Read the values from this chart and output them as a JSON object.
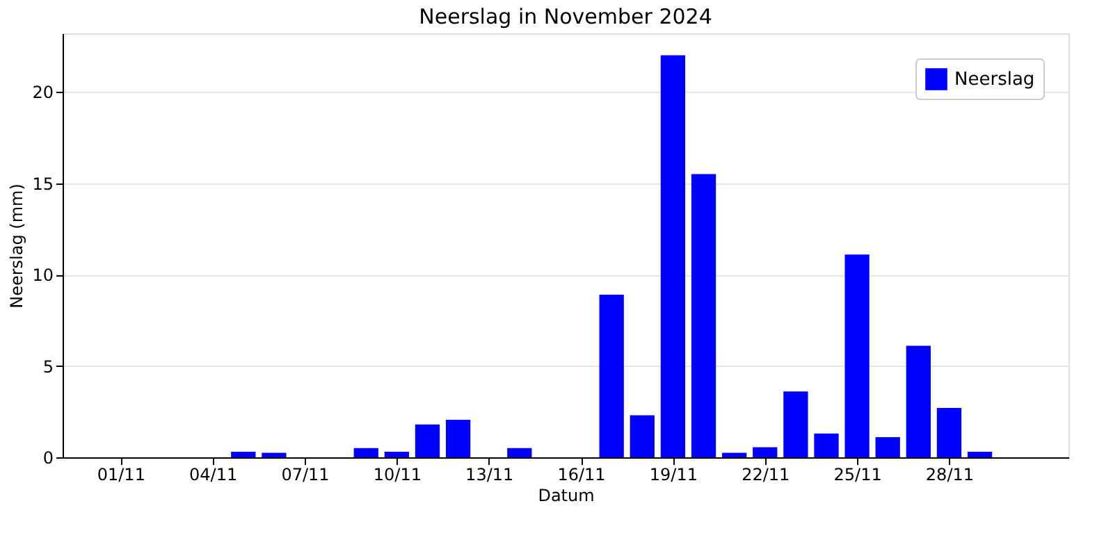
{
  "chart_data": {
    "type": "bar",
    "title": "Neerslag in November 2024",
    "xlabel": "Datum",
    "ylabel": "Neerslag (mm)",
    "x": [
      "2024-11-01",
      "2024-11-02",
      "2024-11-03",
      "2024-11-04",
      "2024-11-05",
      "2024-11-06",
      "2024-11-07",
      "2024-11-08",
      "2024-11-09",
      "2024-11-10",
      "2024-11-11",
      "2024-11-12",
      "2024-11-13",
      "2024-11-14",
      "2024-11-15",
      "2024-11-16",
      "2024-11-17",
      "2024-11-18",
      "2024-11-19",
      "2024-11-20",
      "2024-11-21",
      "2024-11-22",
      "2024-11-23",
      "2024-11-24",
      "2024-11-25",
      "2024-11-26",
      "2024-11-27",
      "2024-11-28",
      "2024-11-29",
      "2024-11-30"
    ],
    "series": [
      {
        "name": "Neerslag",
        "color": "#0000ff",
        "values": [
          0,
          0,
          0,
          0,
          0.3,
          0.25,
          0,
          0,
          0.5,
          0.3,
          1.8,
          2.05,
          0,
          0.5,
          0,
          0,
          8.9,
          2.3,
          22.0,
          15.5,
          0.25,
          0.55,
          3.6,
          1.3,
          11.1,
          1.1,
          6.1,
          2.7,
          0.3,
          0
        ]
      }
    ],
    "xlim": [
      "2024-10-30T02:40",
      "2024-12-01T21:20"
    ],
    "xticks": [
      {
        "value": "2024-11-01",
        "label": "01/11"
      },
      {
        "value": "2024-11-04",
        "label": "04/11"
      },
      {
        "value": "2024-11-07",
        "label": "07/11"
      },
      {
        "value": "2024-11-10",
        "label": "10/11"
      },
      {
        "value": "2024-11-13",
        "label": "13/11"
      },
      {
        "value": "2024-11-16",
        "label": "16/11"
      },
      {
        "value": "2024-11-19",
        "label": "19/11"
      },
      {
        "value": "2024-11-22",
        "label": "22/11"
      },
      {
        "value": "2024-11-25",
        "label": "25/11"
      },
      {
        "value": "2024-11-28",
        "label": "28/11"
      }
    ],
    "ylim": [
      0,
      23.2
    ],
    "yticks": [
      0,
      5,
      10,
      15,
      20
    ],
    "grid": "y",
    "legend": "top right"
  }
}
